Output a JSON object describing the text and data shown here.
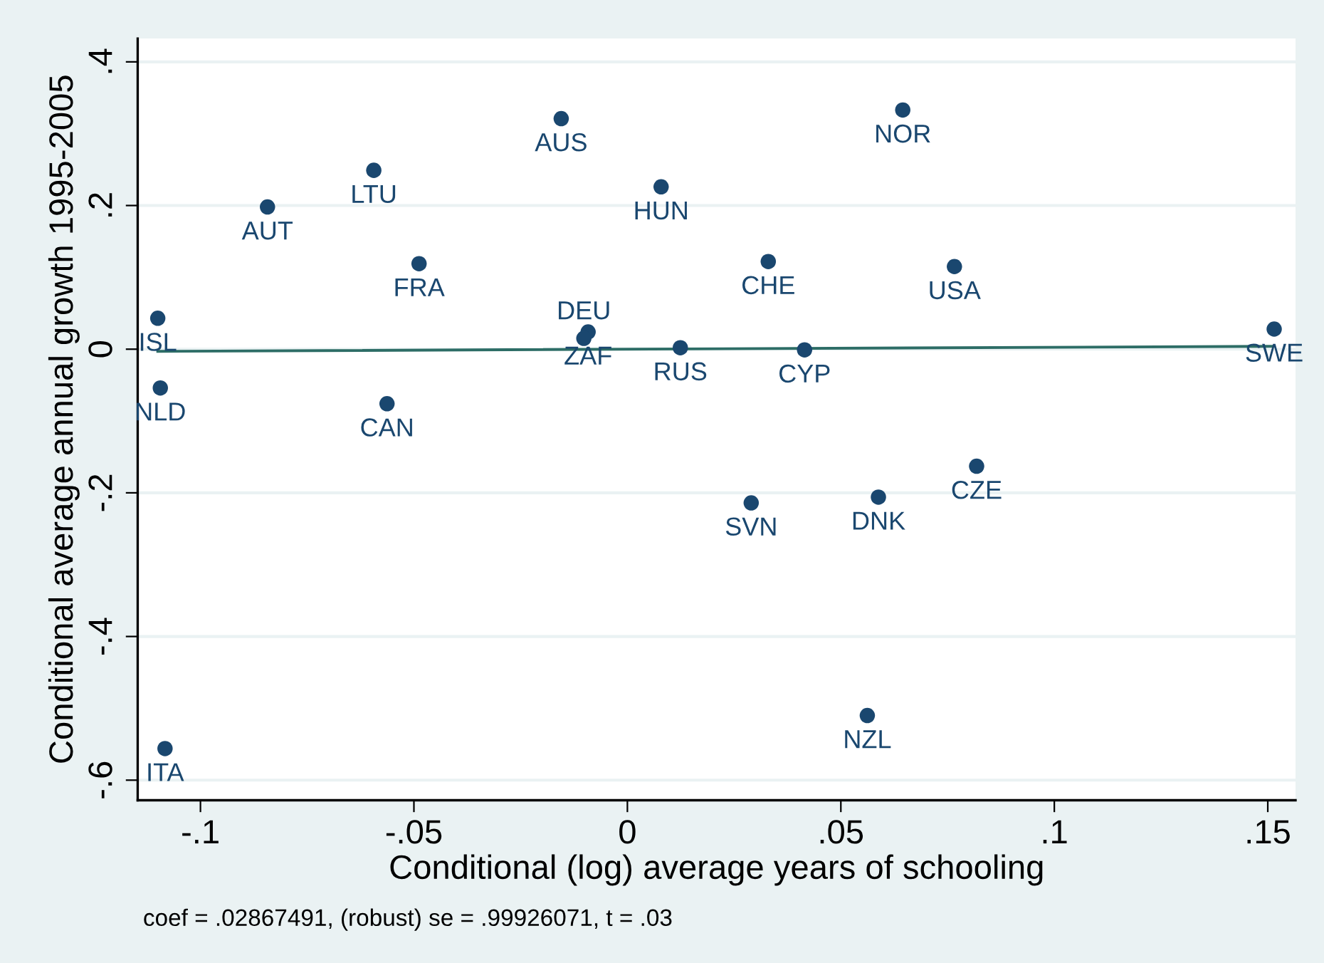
{
  "chart_data": {
    "type": "scatter",
    "xlabel": "Conditional (log) average years of schooling",
    "ylabel": "Conditional average annual growth 1995-2005",
    "xlim": [
      -0.1147,
      0.1565
    ],
    "ylim": [
      -0.628,
      0.4325
    ],
    "xticks": [
      {
        "value": -0.1,
        "label": "-.1"
      },
      {
        "value": -0.05,
        "label": "-.05"
      },
      0,
      {
        "value": 0.05,
        "label": ".05"
      },
      {
        "value": 0.1,
        "label": ".1"
      },
      {
        "value": 0.15,
        "label": ".15"
      }
    ],
    "yticks": [
      {
        "value": -0.6,
        "label": "-.6"
      },
      {
        "value": -0.4,
        "label": "-.4"
      },
      {
        "value": -0.2,
        "label": "-.2"
      },
      0,
      {
        "value": 0.2,
        "label": ".2"
      },
      {
        "value": 0.4,
        "label": ".4"
      }
    ],
    "grid": "y",
    "series": [
      {
        "marker": "circle",
        "color": "#1a476f",
        "x": [
          -0.11,
          -0.1094,
          -0.1083,
          -0.0843,
          -0.0594,
          -0.0488,
          -0.0563,
          -0.0155,
          -0.0092,
          -0.0102,
          0.0079,
          0.0124,
          0.033,
          0.0415,
          0.0645,
          0.0766,
          0.1515,
          0.029,
          0.0588,
          0.0818,
          0.0562
        ],
        "values": [
          0.043,
          -0.054,
          -0.556,
          0.198,
          0.249,
          0.119,
          -0.076,
          0.321,
          0.024,
          0.015,
          0.226,
          0.002,
          0.122,
          -0.001,
          0.333,
          0.115,
          0.028,
          -0.214,
          -0.206,
          -0.163,
          -0.51
        ]
      },
      {
        "type": "line",
        "marker": "none",
        "color": "#2d6d66",
        "x": [
          -0.11,
          0.1515
        ],
        "values": [
          -0.003,
          0.004
        ]
      }
    ],
    "annotations": [
      {
        "text": "ISL",
        "x": -0.11,
        "y": 0.043
      },
      {
        "text": "NLD",
        "x": -0.1094,
        "y": -0.054
      },
      {
        "text": "ITA",
        "x": -0.1083,
        "y": -0.556
      },
      {
        "text": "AUT",
        "x": -0.0843,
        "y": 0.198
      },
      {
        "text": "LTU",
        "x": -0.0594,
        "y": 0.249
      },
      {
        "text": "FRA",
        "x": -0.0488,
        "y": 0.119
      },
      {
        "text": "CAN",
        "x": -0.0563,
        "y": -0.076
      },
      {
        "text": "AUS",
        "x": -0.0155,
        "y": 0.321
      },
      {
        "text": "ZAF",
        "x": -0.0092,
        "y": 0.024
      },
      {
        "text": "DEU",
        "x": -0.0102,
        "y": 0.015
      },
      {
        "text": "HUN",
        "x": 0.0079,
        "y": 0.226
      },
      {
        "text": "RUS",
        "x": 0.0124,
        "y": 0.002
      },
      {
        "text": "CHE",
        "x": 0.033,
        "y": 0.122
      },
      {
        "text": "CYP",
        "x": 0.0415,
        "y": -0.001
      },
      {
        "text": "NOR",
        "x": 0.0645,
        "y": 0.333
      },
      {
        "text": "USA",
        "x": 0.0766,
        "y": 0.115
      },
      {
        "text": "SWE",
        "x": 0.1515,
        "y": 0.028
      },
      {
        "text": "SVN",
        "x": 0.029,
        "y": -0.214
      },
      {
        "text": "DNK",
        "x": 0.0588,
        "y": -0.206
      },
      {
        "text": "CZE",
        "x": 0.0818,
        "y": -0.163
      },
      {
        "text": "NZL",
        "x": 0.0562,
        "y": -0.51
      },
      "coef = .02867491, (robust) se = .99926071, t = .03"
    ]
  }
}
